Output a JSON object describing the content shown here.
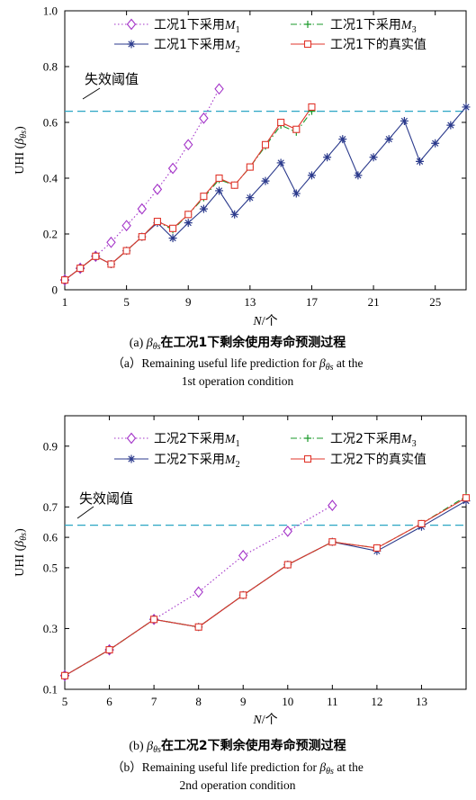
{
  "chart_data": [
    {
      "type": "line",
      "ylabel": "UHI (βθs)",
      "xlabel": "N/个",
      "xlim": [
        1,
        27
      ],
      "ylim": [
        0,
        1.0
      ],
      "xticks": [
        1,
        5,
        9,
        13,
        17,
        21,
        25
      ],
      "yticks": [
        0,
        0.2,
        0.4,
        0.6,
        0.8,
        1.0
      ],
      "ytick_labels": [
        "0",
        "0.2",
        "0.4",
        "0.6",
        "0.8",
        "1.0"
      ],
      "threshold": 0.64,
      "threshold_label": "失效阈值",
      "legend_position": "top",
      "series": [
        {
          "name": "工况1下采用M1",
          "legend_base": "工况1下采用",
          "model": "M",
          "sub": "1",
          "style": "dotted",
          "marker": "diamond",
          "color": "#a333c8",
          "x": [
            1,
            2,
            3,
            4,
            5,
            6,
            7,
            8,
            9,
            10,
            11
          ],
          "y": [
            0.035,
            0.077,
            0.12,
            0.17,
            0.23,
            0.29,
            0.36,
            0.435,
            0.52,
            0.615,
            0.72
          ]
        },
        {
          "name": "工况1下采用M2",
          "legend_base": "工况1下采用",
          "model": "M",
          "sub": "2",
          "style": "solid",
          "marker": "asterisk",
          "color": "#2b3a8c",
          "x": [
            1,
            2,
            3,
            4,
            5,
            6,
            7,
            8,
            9,
            10,
            11,
            12,
            13,
            14,
            15,
            16,
            17,
            18,
            19,
            20,
            21,
            22,
            23,
            24,
            25,
            26,
            27
          ],
          "y": [
            0.035,
            0.077,
            0.12,
            0.092,
            0.14,
            0.19,
            0.24,
            0.185,
            0.24,
            0.29,
            0.355,
            0.27,
            0.33,
            0.39,
            0.455,
            0.345,
            0.41,
            0.475,
            0.54,
            0.41,
            0.475,
            0.54,
            0.605,
            0.46,
            0.525,
            0.59,
            0.655
          ]
        },
        {
          "name": "工况1下采用M3",
          "legend_base": "工况1下采用",
          "model": "M",
          "sub": "3",
          "style": "dashdot",
          "marker": "plus",
          "color": "#1a9a2a",
          "x": [
            1,
            2,
            3,
            4,
            5,
            6,
            7,
            8,
            9,
            10,
            11,
            12,
            13,
            14,
            15,
            16,
            17
          ],
          "y": [
            0.035,
            0.077,
            0.12,
            0.092,
            0.14,
            0.19,
            0.245,
            0.215,
            0.27,
            0.33,
            0.395,
            0.375,
            0.44,
            0.515,
            0.59,
            0.565,
            0.64
          ]
        },
        {
          "name": "工况1下的真实值",
          "legend_base": "工况1下的真实值",
          "model": "",
          "sub": "",
          "style": "solid",
          "marker": "square",
          "color": "#e0352b",
          "x": [
            1,
            2,
            3,
            4,
            5,
            6,
            7,
            8,
            9,
            10,
            11,
            12,
            13,
            14,
            15,
            16,
            17
          ],
          "y": [
            0.035,
            0.077,
            0.12,
            0.092,
            0.14,
            0.19,
            0.245,
            0.22,
            0.27,
            0.335,
            0.4,
            0.375,
            0.44,
            0.52,
            0.6,
            0.575,
            0.655
          ]
        }
      ],
      "caption_cn": {
        "prefix": "(a) ",
        "beta": "β",
        "sub": "θs",
        "text": "在工况1下剩余使用寿命预测过程"
      },
      "caption_en": {
        "line1_prefix": "（a）Remaining useful life prediction for ",
        "beta": "β",
        "sub": "θs",
        "line1_suffix": " at the",
        "line2": "1st operation condition"
      }
    },
    {
      "type": "line",
      "ylabel": "UHI (βθs)",
      "xlabel": "N/个",
      "xlim": [
        5,
        14
      ],
      "ylim": [
        0.1,
        1.0
      ],
      "xticks": [
        5,
        6,
        7,
        8,
        9,
        10,
        11,
        12,
        13
      ],
      "yticks": [
        0.1,
        0.3,
        0.5,
        0.6,
        0.7,
        0.9
      ],
      "ytick_labels": [
        "0.1",
        "0.3",
        "0.5",
        "0.6",
        "0.7",
        "0.9"
      ],
      "threshold": 0.64,
      "threshold_label": "失效阈值",
      "legend_position": "top",
      "series": [
        {
          "name": "工况2下采用M1",
          "legend_base": "工况2下采用",
          "model": "M",
          "sub": "1",
          "style": "dotted",
          "marker": "diamond",
          "color": "#a333c8",
          "x": [
            5,
            6,
            7,
            8,
            9,
            10,
            11
          ],
          "y": [
            0.145,
            0.23,
            0.33,
            0.42,
            0.54,
            0.62,
            0.705
          ]
        },
        {
          "name": "工况2下采用M2",
          "legend_base": "工况2下采用",
          "model": "M",
          "sub": "2",
          "style": "solid",
          "marker": "asterisk",
          "color": "#2b3a8c",
          "x": [
            5,
            6,
            7,
            8,
            9,
            10,
            11,
            12,
            13,
            14
          ],
          "y": [
            0.145,
            0.23,
            0.33,
            0.305,
            0.41,
            0.51,
            0.585,
            0.555,
            0.635,
            0.72
          ]
        },
        {
          "name": "工况2下采用M3",
          "legend_base": "工况2下采用",
          "model": "M",
          "sub": "3",
          "style": "dashdot",
          "marker": "plus",
          "color": "#1a9a2a",
          "x": [
            5,
            6,
            7,
            8,
            9,
            10,
            11,
            12,
            13,
            14
          ],
          "y": [
            0.145,
            0.23,
            0.33,
            0.305,
            0.41,
            0.51,
            0.585,
            0.565,
            0.645,
            0.735
          ]
        },
        {
          "name": "工况2下的真实值",
          "legend_base": "工况2下的真实值",
          "model": "",
          "sub": "",
          "style": "solid",
          "marker": "square",
          "color": "#e0352b",
          "x": [
            5,
            6,
            7,
            8,
            9,
            10,
            11,
            12,
            13,
            14
          ],
          "y": [
            0.145,
            0.23,
            0.33,
            0.305,
            0.41,
            0.51,
            0.585,
            0.565,
            0.645,
            0.73
          ]
        }
      ],
      "caption_cn": {
        "prefix": "(b) ",
        "beta": "β",
        "sub": "θs",
        "text": "在工况2下剩余使用寿命预测过程"
      },
      "caption_en": {
        "line1_prefix": "（b）Remaining useful life prediction for ",
        "beta": "β",
        "sub": "θs",
        "line1_suffix": " at the",
        "line2": "2nd operation condition"
      }
    }
  ]
}
